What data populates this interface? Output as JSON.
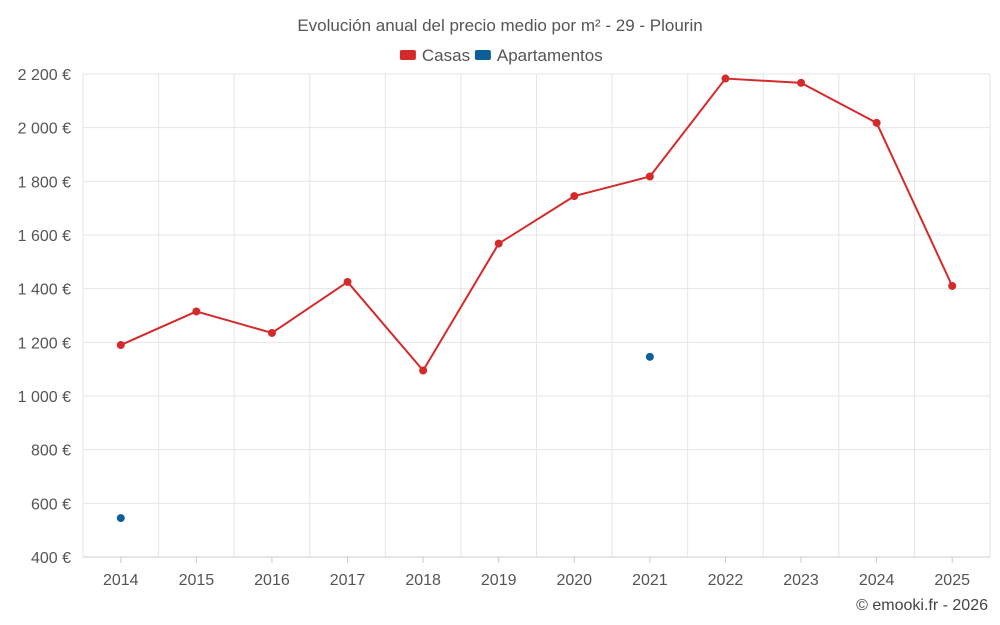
{
  "chart_data": {
    "type": "line",
    "title": "Evolución anual del precio medio por m² - 29 - Plourin",
    "categories": [
      "2014",
      "2015",
      "2016",
      "2017",
      "2018",
      "2019",
      "2020",
      "2021",
      "2022",
      "2023",
      "2024",
      "2025"
    ],
    "series": [
      {
        "name": "Casas",
        "color": "#d42a2a",
        "values": [
          1190,
          1315,
          1235,
          1425,
          1095,
          1568,
          1745,
          1818,
          2183,
          2167,
          2018,
          1410
        ]
      },
      {
        "name": "Apartamentos",
        "color": "#0d5f99",
        "values": [
          545,
          null,
          null,
          null,
          null,
          null,
          null,
          1146,
          null,
          null,
          null,
          null
        ]
      }
    ],
    "ylim": [
      400,
      2200
    ],
    "yticks": [
      400,
      600,
      800,
      1000,
      1200,
      1400,
      1600,
      1800,
      2000,
      2200
    ],
    "ytick_labels": [
      "400 €",
      "600 €",
      "800 €",
      "1 000 €",
      "1 200 €",
      "1 400 €",
      "1 600 €",
      "1 800 €",
      "2 000 €",
      "2 200 €"
    ],
    "xlabel": "",
    "ylabel": "",
    "grid": true,
    "legend": "top-center"
  },
  "credit": "© emooki.fr - 2026"
}
